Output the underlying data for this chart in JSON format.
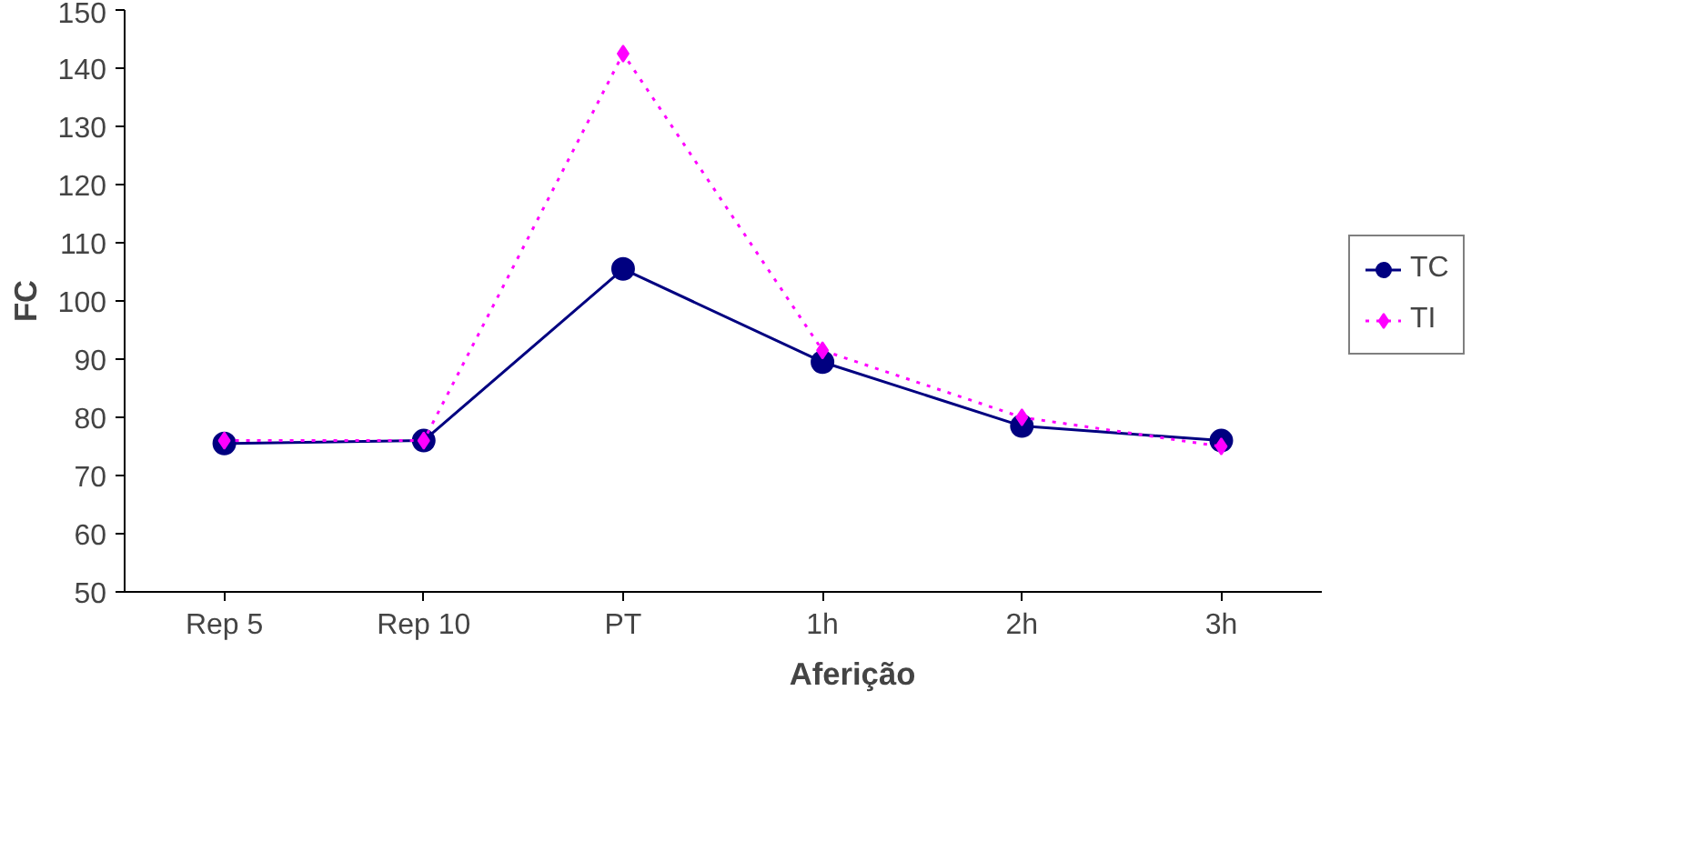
{
  "chart_data": {
    "type": "line",
    "xlabel": "Aferição",
    "ylabel": "FC",
    "categories": [
      "Rep 5",
      "Rep 10",
      "PT",
      "1h",
      "2h",
      "3h"
    ],
    "series": [
      {
        "name": "TC",
        "color": "#000080",
        "marker": "circle",
        "line_style": "solid",
        "values": [
          75.5,
          76,
          105.5,
          89.5,
          78.5,
          76
        ]
      },
      {
        "name": "TI",
        "color": "#ff00ff",
        "marker": "diamond",
        "line_style": "dotted",
        "values": [
          76,
          76,
          142.5,
          91.5,
          80,
          75
        ]
      }
    ],
    "ylim": [
      50,
      150
    ],
    "yticks": [
      50,
      60,
      70,
      80,
      90,
      100,
      110,
      120,
      130,
      140,
      150
    ],
    "grid": false,
    "legend": "right"
  }
}
